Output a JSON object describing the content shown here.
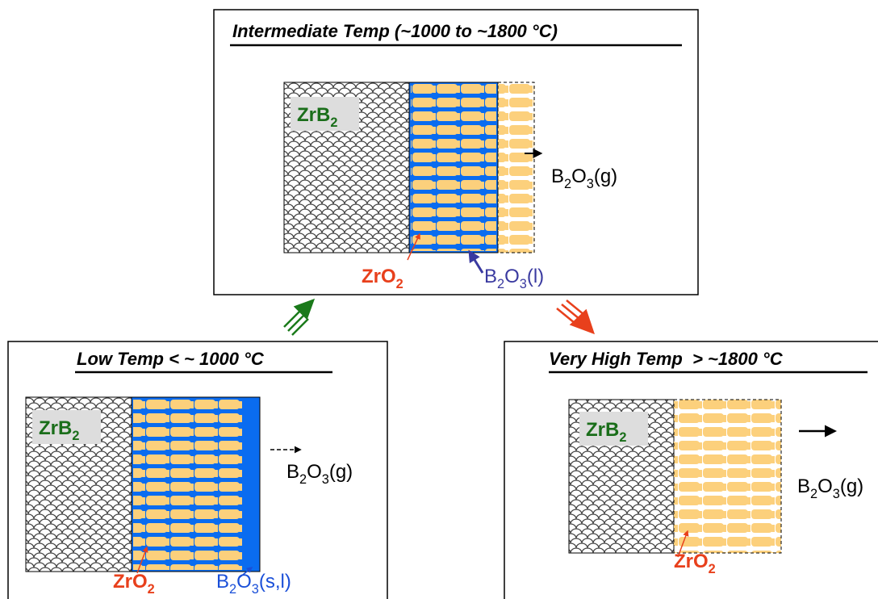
{
  "panels": [
    {
      "title": "Intermediate Temp (~1000 to ~1800 °C)",
      "substrate": [
        "ZrB",
        "2"
      ],
      "oxide": [
        "ZrO",
        "2"
      ],
      "liquid": [
        "B",
        "2",
        "O",
        "3",
        "(l)"
      ],
      "gas": [
        "B",
        "2",
        "O",
        "3",
        "(g)"
      ]
    },
    {
      "title": "Low Temp < ~ 1000 °C",
      "substrate": [
        "ZrB",
        "2"
      ],
      "oxide": [
        "ZrO",
        "2"
      ],
      "liquid": [
        "B",
        "2",
        "O",
        "3",
        "(s,l)"
      ],
      "gas": [
        "B",
        "2",
        "O",
        "3",
        "(g)"
      ]
    },
    {
      "title": "Very High Temp  > ~1800 °C",
      "substrate": [
        "ZrB",
        "2"
      ],
      "oxide": [
        "ZrO",
        "2"
      ],
      "gas": [
        "B",
        "2",
        "O",
        "3",
        "(g)"
      ]
    }
  ]
}
